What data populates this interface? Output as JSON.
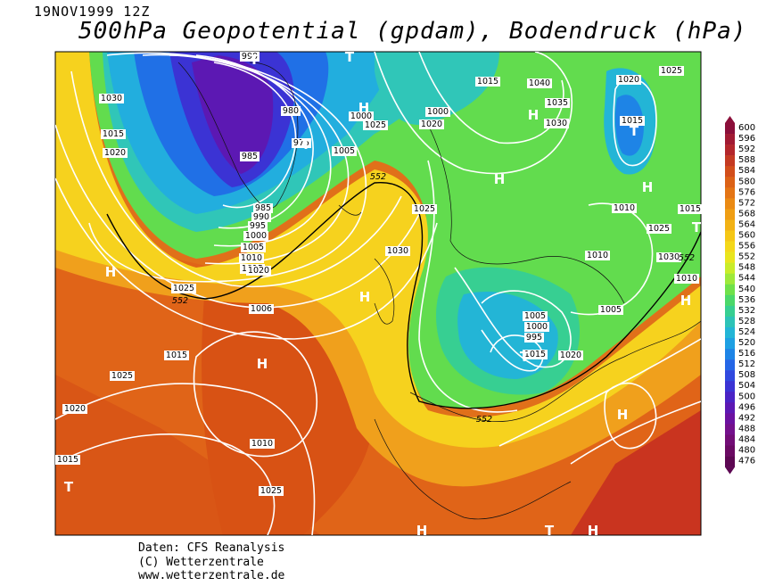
{
  "header": {
    "timestamp": "19NOV1999 12Z",
    "title": "500hPa Geopotential (gpdam), Bodendruck (hPa)"
  },
  "footer": {
    "line1": "Daten: CFS Reanalysis",
    "line2": "(C) Wetterzentrale",
    "line3": "www.wetterzentrale.de"
  },
  "colorbar": {
    "labels": [
      "600",
      "596",
      "592",
      "588",
      "584",
      "580",
      "576",
      "572",
      "568",
      "564",
      "560",
      "556",
      "552",
      "548",
      "544",
      "540",
      "536",
      "532",
      "528",
      "524",
      "520",
      "516",
      "512",
      "508",
      "504",
      "500",
      "496",
      "492",
      "488",
      "484",
      "480",
      "476"
    ],
    "colors": [
      "#8b0f3a",
      "#a11a33",
      "#b3262b",
      "#c43a22",
      "#d24e1b",
      "#dc6217",
      "#e47515",
      "#ea8a14",
      "#ef9e14",
      "#f2b215",
      "#f5c716",
      "#f4d81a",
      "#e9e51e",
      "#c9ec2a",
      "#9ee93a",
      "#6fe14a",
      "#4bd86a",
      "#37cf92",
      "#2dc3b7",
      "#23b5d6",
      "#1ea0e3",
      "#1d84e6",
      "#2566e6",
      "#3049df",
      "#3b33d4",
      "#4a23c5",
      "#5c18b3",
      "#6b11a0",
      "#74108c",
      "#720d76",
      "#6a0a63",
      "#5c0752"
    ]
  },
  "map_labels": {
    "isobars": [
      "990",
      "980",
      "975",
      "985",
      "985",
      "990",
      "995",
      "1000",
      "1005",
      "1010",
      "1015",
      "1020",
      "1025",
      "1030",
      "1015",
      "1020",
      "1025",
      "1000",
      "1005",
      "1000",
      "1020",
      "1015",
      "1040",
      "1035",
      "1030",
      "1025",
      "1020",
      "1015",
      "1010",
      "1025",
      "1030",
      "1010",
      "1005",
      "1000",
      "995",
      "1005",
      "1010",
      "1015",
      "1006",
      "1015",
      "1025",
      "1020",
      "1015",
      "1010",
      "1025",
      "1030",
      "1025",
      "1020",
      "1015"
    ],
    "geopotential": [
      "552",
      "552",
      "552",
      "552"
    ],
    "pressure_centers": [
      "T",
      "T",
      "T",
      "T",
      "T",
      "T",
      "T",
      "H",
      "H",
      "H",
      "H",
      "H",
      "H",
      "H",
      "H",
      "H",
      "H",
      "T",
      "H",
      "T"
    ]
  }
}
